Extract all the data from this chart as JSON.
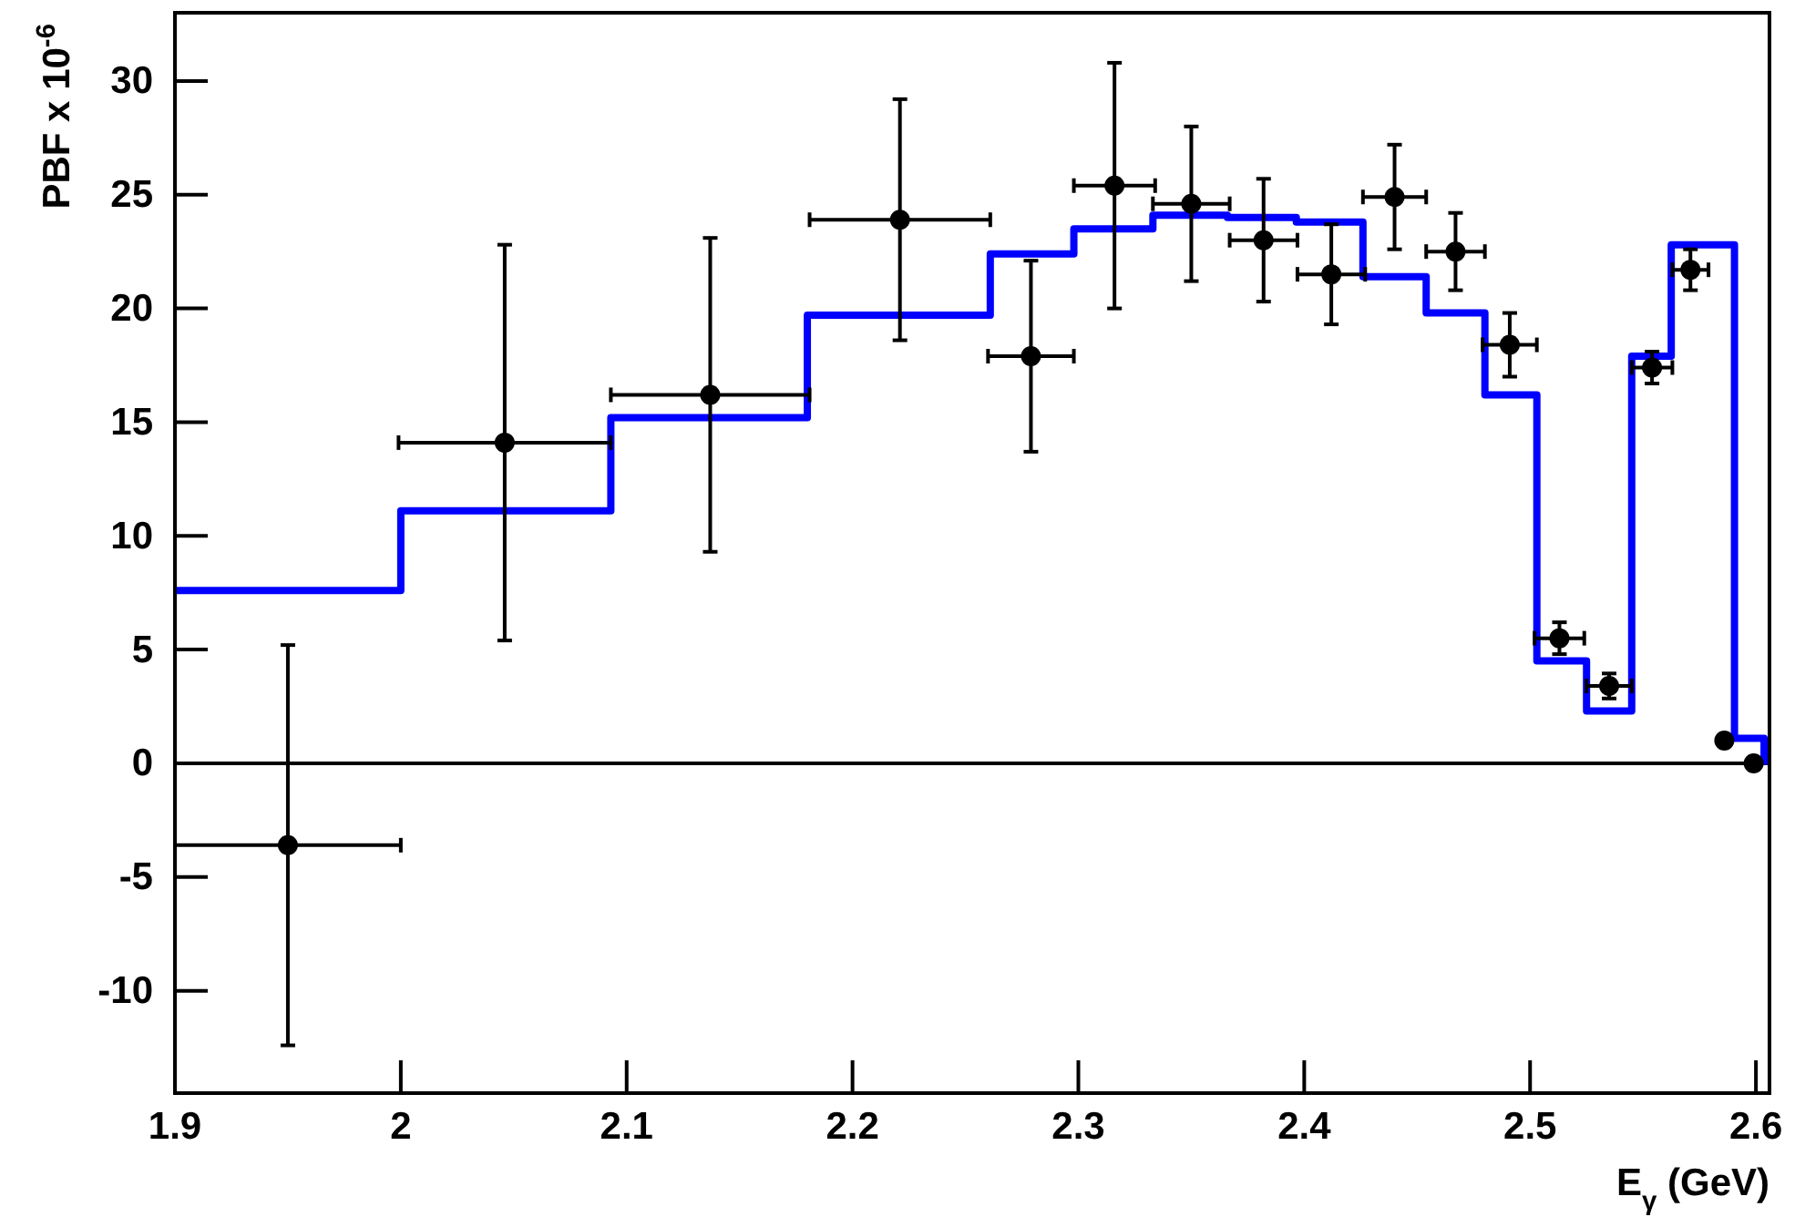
{
  "chart_data": {
    "type": "scatter",
    "xlabel": "E$_{γ}$ (GeV)",
    "ylabel": "PBF x 10$^{-6}$",
    "xlim": [
      1.9,
      2.606
    ],
    "ylim": [
      -14.5,
      33
    ],
    "xticks": [
      1.9,
      2,
      2.1,
      2.2,
      2.3,
      2.4,
      2.5,
      2.6
    ],
    "yticks": [
      -10,
      -5,
      0,
      5,
      10,
      15,
      20,
      25,
      30
    ],
    "grid": false,
    "ref_lines": [
      {
        "axis": "y",
        "value": 0,
        "color": "#000000"
      }
    ],
    "series": [
      {
        "type": "step",
        "color": "#0000ff",
        "x": [
          1.9,
          2.0,
          2.093,
          2.18,
          2.261,
          2.298,
          2.333,
          2.366,
          2.3965,
          2.426,
          2.454,
          2.48,
          2.503,
          2.525,
          2.545,
          2.5625,
          2.5905,
          2.6036,
          2.606
        ],
        "values": [
          7.6,
          11.1,
          15.2,
          19.7,
          22.4,
          23.5,
          24.1,
          24,
          23.8,
          21.4,
          19.8,
          16.2,
          4.5,
          2.3,
          17.9,
          22.8,
          1.1,
          0.1,
          0.1
        ]
      },
      {
        "color": "#000000",
        "marker": "circle",
        "x": [
          1.95,
          2.046,
          2.137,
          2.221,
          2.279,
          2.316,
          2.35,
          2.382,
          2.412,
          2.44,
          2.467,
          2.491,
          2.513,
          2.535,
          2.554,
          2.571,
          2.586,
          2.599
        ],
        "values": [
          -3.6,
          14.1,
          16.2,
          23.9,
          17.9,
          25.4,
          24.6,
          23,
          21.5,
          24.9,
          22.5,
          18.4,
          5.5,
          3.4,
          17.4,
          21.7,
          1,
          0
        ],
        "errors": [
          8.8,
          8.7,
          6.9,
          5.3,
          4.2,
          5.4,
          3.4,
          2.7,
          2.2,
          2.3,
          1.7,
          1.4,
          0.7,
          0.55,
          0.7,
          0.9,
          null,
          null
        ],
        "xerrors": [
          0.05,
          0.047,
          0.044,
          0.04,
          0.019,
          0.018,
          0.017,
          0.015,
          0.015,
          0.014,
          0.013,
          0.012,
          0.011,
          0.01,
          0.009,
          0.008,
          null,
          null
        ]
      }
    ]
  }
}
